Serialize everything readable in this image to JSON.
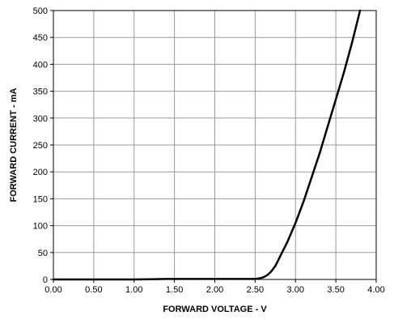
{
  "chart_data": {
    "type": "line",
    "title": "",
    "xlabel": "FORWARD VOLTAGE - V",
    "ylabel": "FORWARD CURRENT - mA",
    "xlim": [
      0,
      4
    ],
    "ylim": [
      0,
      500
    ],
    "xticks": [
      "0.00",
      "0.50",
      "1.00",
      "1.50",
      "2.00",
      "2.50",
      "3.00",
      "3.50",
      "4.00"
    ],
    "yticks": [
      "0",
      "50",
      "100",
      "150",
      "200",
      "250",
      "300",
      "350",
      "400",
      "450",
      "500"
    ],
    "grid": true,
    "legend": "none",
    "colors": {
      "line": "#000000",
      "grid": "#999999",
      "background": "#ffffff"
    },
    "series": [
      {
        "x": [
          0.0,
          0.5,
          1.0,
          1.2,
          1.4,
          1.5,
          2.0,
          2.3,
          2.5,
          2.55,
          2.6,
          2.65,
          2.7,
          2.75,
          2.8,
          2.9,
          3.0,
          3.1,
          3.2,
          3.3,
          3.4,
          3.5,
          3.6,
          3.7,
          3.8
        ],
        "y": [
          0,
          0,
          0,
          0.3,
          1,
          1,
          1,
          1,
          1,
          2,
          4,
          8,
          15,
          25,
          40,
          70,
          105,
          145,
          190,
          235,
          285,
          335,
          385,
          440,
          500
        ]
      }
    ]
  }
}
